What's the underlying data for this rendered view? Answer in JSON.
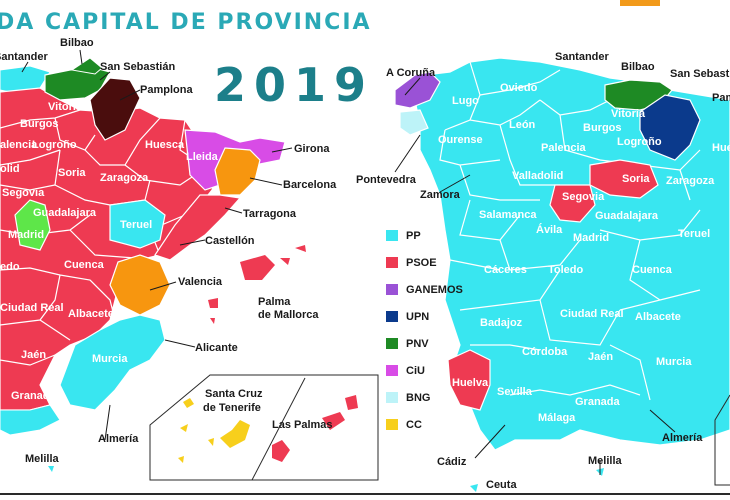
{
  "header": {
    "title": "DA CAPITAL DE PROVINCIA",
    "year": "2019"
  },
  "colors": {
    "PP": "#39e6f0",
    "PSOE": "#ee3a52",
    "GANEMOS": "#9a52d6",
    "UPN": "#0b3a8c",
    "PNV": "#1e8a24",
    "CiU": "#d84ce6",
    "BNG": "#bdf3f8",
    "CC": "#f7cf1c",
    "Madrid_left": "#5ee649",
    "Pamplona_left": "#4a0d0d",
    "Barcelona_left": "#f7960f",
    "Valencia_left": "#f7960f",
    "title": "#2aa9b6",
    "year": "#1c7f8a"
  },
  "legend": [
    {
      "party": "PP",
      "color": "#39e6f0"
    },
    {
      "party": "PSOE",
      "color": "#ee3a52"
    },
    {
      "party": "GANEMOS",
      "color": "#9a52d6"
    },
    {
      "party": "UPN",
      "color": "#0b3a8c"
    },
    {
      "party": "PNV",
      "color": "#1e8a24"
    },
    {
      "party": "CiU",
      "color": "#d84ce6"
    },
    {
      "party": "BNG",
      "color": "#bdf3f8"
    },
    {
      "party": "CC",
      "color": "#f7cf1c"
    }
  ],
  "left_map": {
    "labels_white": [
      "Burgos",
      "alencia",
      "Logroño",
      "Soria",
      "Huesca",
      "Zaragoza",
      "olid",
      "Segovia",
      "Guadalajara",
      "Madrid",
      "Teruel",
      "edo",
      "Cuenca",
      "Ciudad Real",
      "Albacete",
      "Jaén",
      "Granada",
      "Murcia",
      "Lleida",
      "Vitoria"
    ],
    "callouts": [
      "Santander",
      "Bilbao",
      "San Sebastián",
      "Pamplona",
      "Girona",
      "Barcelona",
      "Tarragona",
      "Castellón",
      "Valencia",
      "Palma de Mallorca",
      "Alicante",
      "Almería",
      "Melilla",
      "Santa Cruz de Tenerife",
      "Las Palmas"
    ]
  },
  "right_map": {
    "labels_white": [
      "Lugo",
      "Oviedo",
      "León",
      "Ourense",
      "Palencia",
      "Burgos",
      "Vitoria",
      "Logroño",
      "Valladolid",
      "Soria",
      "Zaragoza",
      "Segovia",
      "Guadalajara",
      "Salamanca",
      "Ávila",
      "Madrid",
      "Teruel",
      "Cáceres",
      "Toledo",
      "Cuenca",
      "Badajoz",
      "Ciudad Real",
      "Albacete",
      "Córdoba",
      "Jaén",
      "Murcia",
      "Huelva",
      "Sevilla",
      "Málaga",
      "Granada",
      "Hue"
    ],
    "callouts": [
      "A Coruña",
      "Santander",
      "Bilbao",
      "San Sebastián",
      "Pam",
      "Pontevedra",
      "Zamora",
      "Cádiz",
      "Almería",
      "Ceuta",
      "Melilla"
    ]
  }
}
